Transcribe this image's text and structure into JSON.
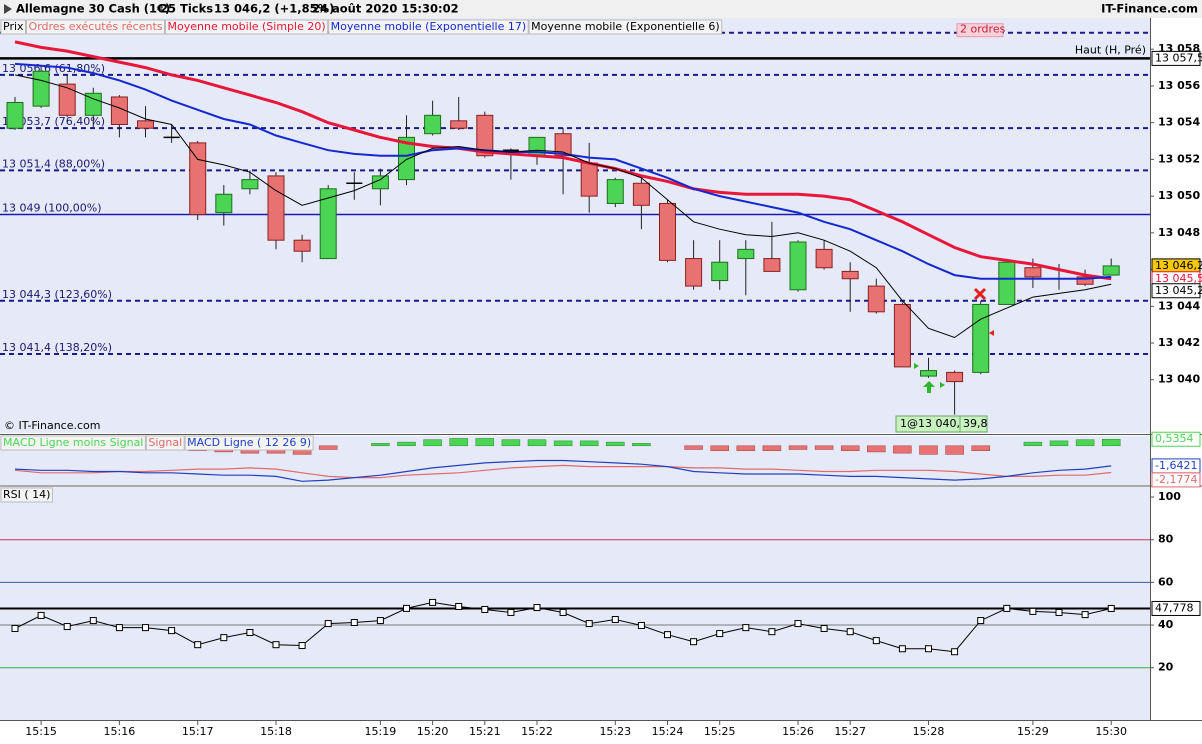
{
  "header": {
    "title": "Allemagne 30 Cash (1€)",
    "interval": "25 Ticks",
    "price": "13 046,2 (+1,85%)",
    "datetime": "24 août 2020 15:30:02",
    "brand": "IT-Finance.com",
    "watermark": "© IT-Finance.com"
  },
  "chart_data": [
    {
      "type": "candlestick",
      "ylim": [
        13037.1,
        13059.7
      ],
      "yticks": [
        {
          "value": 13040,
          "label": "13 040"
        },
        {
          "value": 13042,
          "label": "13 042"
        },
        {
          "value": 13044,
          "label": "13 044"
        },
        {
          "value": 13046,
          "label": "13 046"
        },
        {
          "value": 13048,
          "label": "13 048"
        },
        {
          "value": 13050,
          "label": "13 050"
        },
        {
          "value": 13052,
          "label": "13 052"
        },
        {
          "value": 13054,
          "label": "13 054"
        },
        {
          "value": 13056,
          "label": "13 056"
        },
        {
          "value": 13058,
          "label": "13 058"
        }
      ],
      "series": [
        {
          "name": "Prix",
          "color": "#000000",
          "up_color": "#4cd454",
          "down_color": "#e87272",
          "open": [
            13053.7,
            13054.9,
            13056.1,
            13054.4,
            13055.4,
            13054.1,
            13053.2,
            13052.9,
            13049.1,
            13050.4,
            13051.1,
            13047.6,
            13046.6,
            13050.7,
            13050.4,
            13050.9,
            13053.4,
            13054.1,
            13054.4,
            13052.5,
            13052.2,
            13053.4,
            13051.8,
            13049.6,
            13050.7,
            13049.6,
            13046.6,
            13045.4,
            13046.6,
            13046.6,
            13044.9,
            13047.1,
            13045.9,
            13045.1,
            13044.1,
            13040.2,
            13040.4,
            13040.4,
            13044.1,
            13046.1,
            13045.5,
            13045.6,
            13045.7
          ],
          "high": [
            13055.4,
            13057.1,
            13056.6,
            13055.9,
            13055.5,
            13054.9,
            13053.9,
            13053.0,
            13050.6,
            13051.4,
            13051.3,
            13047.9,
            13050.6,
            13051.3,
            13051.5,
            13054.4,
            13055.2,
            13055.4,
            13054.6,
            13052.6,
            13053.2,
            13053.7,
            13052.9,
            13051.0,
            13051.1,
            13049.8,
            13047.6,
            13047.6,
            13047.6,
            13048.6,
            13047.6,
            13047.6,
            13046.4,
            13045.5,
            13044.2,
            13041.2,
            13040.5,
            13044.3,
            13046.5,
            13046.6,
            13046.3,
            13046.0,
            13046.6
          ],
          "low": [
            13053.6,
            13054.8,
            13054.3,
            13053.7,
            13053.2,
            13053.2,
            13052.9,
            13048.7,
            13048.4,
            13050.1,
            13047.1,
            13046.4,
            13046.6,
            13049.8,
            13049.5,
            13050.6,
            13053.3,
            13053.6,
            13052.1,
            13050.9,
            13051.7,
            13050.1,
            13049.1,
            13049.4,
            13048.2,
            13046.4,
            13044.9,
            13044.9,
            13044.6,
            13045.9,
            13044.8,
            13046.0,
            13043.7,
            13043.6,
            13040.7,
            13040.1,
            13038.1,
            13040.3,
            13044.1,
            13045.0,
            13044.9,
            13045.1,
            13045.7
          ],
          "close": [
            13055.1,
            13056.8,
            13054.4,
            13055.6,
            13053.9,
            13053.7,
            13053.2,
            13049.0,
            13050.1,
            13050.9,
            13047.6,
            13047.0,
            13050.4,
            13050.7,
            13051.1,
            13053.2,
            13054.4,
            13053.7,
            13052.2,
            13052.5,
            13053.2,
            13052.2,
            13050.0,
            13050.9,
            13049.5,
            13046.5,
            13045.1,
            13046.4,
            13047.1,
            13045.9,
            13047.5,
            13046.1,
            13045.5,
            13043.7,
            13040.7,
            13040.5,
            13039.9,
            13044.1,
            13046.4,
            13045.6,
            13045.5,
            13045.2,
            13046.2
          ]
        },
        {
          "name": "Ordres exécutés récents",
          "color": "#e06a6a"
        },
        {
          "name": "Moyenne mobile (Simple 20)",
          "color": "#e8173a",
          "width": 3,
          "values": [
            13058.4,
            13058.1,
            13057.9,
            13057.6,
            13057.3,
            13057.0,
            13056.6,
            13056.3,
            13055.9,
            13055.5,
            13055.1,
            13054.6,
            13054.0,
            13053.6,
            13053.2,
            13052.9,
            13052.7,
            13052.6,
            13052.4,
            13052.3,
            13052.2,
            13052.1,
            13051.8,
            13051.5,
            13051.1,
            13050.8,
            13050.4,
            13050.2,
            13050.1,
            13050.1,
            13050.1,
            13050.0,
            13049.8,
            13049.2,
            13048.6,
            13047.9,
            13047.2,
            13046.7,
            13046.5,
            13046.3,
            13046.0,
            13045.7,
            13045.5
          ]
        },
        {
          "name": "Moyenne mobile (Exponentielle 17)",
          "color": "#1428d0",
          "width": 2,
          "values": [
            13057.2,
            13057.1,
            13057.0,
            13056.7,
            13056.3,
            13055.8,
            13055.2,
            13054.7,
            13054.2,
            13053.9,
            13053.3,
            13052.9,
            13052.5,
            13052.3,
            13052.2,
            13052.2,
            13052.5,
            13052.6,
            13052.5,
            13052.4,
            13052.4,
            13052.3,
            13052.1,
            13052.0,
            13051.5,
            13051.0,
            13050.4,
            13050.0,
            13049.7,
            13049.4,
            13049.1,
            13048.6,
            13048.2,
            13047.6,
            13047.0,
            13046.3,
            13045.7,
            13045.5,
            13045.5,
            13045.5,
            13045.5,
            13045.5,
            13045.6
          ]
        },
        {
          "name": "Moyenne mobile (Exponentielle 6)",
          "color": "#000000",
          "width": 1,
          "values": [
            13056.6,
            13056.3,
            13055.9,
            13055.3,
            13054.8,
            13054.2,
            13053.9,
            13052.0,
            13051.7,
            13051.3,
            13050.3,
            13049.5,
            13049.9,
            13050.3,
            13050.9,
            13052.0,
            13052.6,
            13052.7,
            13052.5,
            13052.4,
            13052.5,
            13052.4,
            13051.8,
            13051.5,
            13051.0,
            13049.8,
            13048.6,
            13048.2,
            13047.9,
            13047.8,
            13048.0,
            13047.6,
            13047.0,
            13046.1,
            13044.3,
            13042.8,
            13042.3,
            13043.3,
            13043.9,
            13044.5,
            13044.7,
            13044.9,
            13045.2
          ]
        }
      ],
      "levels": [
        {
          "value": 13056.6,
          "label": "13 056,6 (61,80%)",
          "style": "dashed",
          "color": "#1a1a8c"
        },
        {
          "value": 13053.7,
          "label": "13 053,7 (76,40%)",
          "style": "dashed",
          "color": "#1a1a8c"
        },
        {
          "value": 13051.4,
          "label": "13 051,4 (88,00%)",
          "style": "dashed",
          "color": "#1a1a8c"
        },
        {
          "value": 13049,
          "label": "13 049 (100,00%)",
          "style": "solid",
          "color": "#1a1ab0"
        },
        {
          "value": 13044.3,
          "label": "13 044,3 (123,60%)",
          "style": "dashed",
          "color": "#1a1a8c"
        },
        {
          "value": 13041.4,
          "label": "13 041,4 (138,20%)",
          "style": "dashed",
          "color": "#1a1a8c"
        }
      ],
      "high": {
        "value": 13057.5,
        "label": "Haut (H, Pré)",
        "value_label": "13 057,5"
      },
      "orders": {
        "value": 13058.9,
        "label": "2 ordres"
      },
      "price_tags": [
        {
          "value": 13046.2,
          "label": "13 046,2",
          "color": "#000000",
          "fill": "#f8c800"
        },
        {
          "value": 13045.5,
          "label": "13 045,5",
          "color": "#e8173a",
          "fill": "#ffffff"
        },
        {
          "value": 13045.2,
          "label": "13 045,2",
          "color": "#000000",
          "fill": "#ffffff"
        }
      ],
      "annotations": [
        "1@13 040,8",
        "39,8"
      ]
    },
    {
      "type": "macd",
      "ylim": [
        -3.2,
        0.8
      ],
      "series": [
        {
          "name": "MACD Ligne moins Signal",
          "type": "bar",
          "color": "#4cd454",
          "down_color": "#e87272",
          "values": [
            0.1,
            0.2,
            0.2,
            0.1,
            0,
            -0.1,
            -0.2,
            -0.4,
            -0.5,
            -0.6,
            -0.6,
            -0.7,
            -0.3,
            0,
            0.2,
            0.3,
            0.5,
            0.6,
            0.6,
            0.5,
            0.5,
            0.4,
            0.4,
            0.3,
            0.2,
            0,
            -0.3,
            -0.4,
            -0.4,
            -0.4,
            -0.3,
            -0.3,
            -0.4,
            -0.5,
            -0.6,
            -0.7,
            -0.7,
            -0.4,
            0,
            0.3,
            0.4,
            0.5,
            0.5354
          ],
          "value_labels": [
            null,
            null,
            null,
            null,
            null,
            null,
            null,
            null,
            null,
            null,
            null,
            null,
            null,
            null,
            null,
            null,
            null,
            null,
            null,
            null,
            null,
            null,
            null,
            null,
            null,
            null,
            null,
            null,
            null,
            null,
            null,
            null,
            null,
            null,
            null,
            null,
            null,
            null,
            null,
            null,
            null,
            null,
            "0,5354"
          ]
        },
        {
          "name": "Signal",
          "type": "line",
          "color": "#e06a6a",
          "values": [
            -2.0,
            -2.2,
            -2.2,
            -2.2,
            -2.1,
            -2.1,
            -2.0,
            -1.9,
            -1.9,
            -1.8,
            -1.9,
            -2.2,
            -2.5,
            -2.6,
            -2.6,
            -2.4,
            -2.3,
            -2.2,
            -2.0,
            -1.8,
            -1.7,
            -1.6,
            -1.7,
            -1.7,
            -1.7,
            -1.7,
            -1.8,
            -1.8,
            -1.9,
            -1.9,
            -2.0,
            -2.1,
            -2.1,
            -2.0,
            -2.0,
            -2.0,
            -2.1,
            -2.3,
            -2.5,
            -2.5,
            -2.4,
            -2.4,
            -2.1774
          ],
          "value_labels": [
            null,
            null,
            null,
            null,
            null,
            null,
            null,
            null,
            null,
            null,
            null,
            null,
            null,
            null,
            null,
            null,
            null,
            null,
            null,
            null,
            null,
            null,
            null,
            null,
            null,
            null,
            null,
            null,
            null,
            null,
            null,
            null,
            null,
            null,
            null,
            null,
            null,
            null,
            null,
            null,
            null,
            null,
            "-2,1774"
          ]
        },
        {
          "name": "MACD Ligne ( 12 26 9)",
          "type": "line",
          "color": "#2040c0",
          "values": [
            -1.9,
            -2.0,
            -2.0,
            -2.1,
            -2.1,
            -2.2,
            -2.2,
            -2.3,
            -2.4,
            -2.4,
            -2.5,
            -2.9,
            -2.8,
            -2.6,
            -2.4,
            -2.1,
            -1.8,
            -1.6,
            -1.4,
            -1.3,
            -1.2,
            -1.2,
            -1.3,
            -1.4,
            -1.5,
            -1.7,
            -2.1,
            -2.2,
            -2.3,
            -2.3,
            -2.3,
            -2.4,
            -2.5,
            -2.5,
            -2.6,
            -2.7,
            -2.8,
            -2.7,
            -2.5,
            -2.2,
            -2.0,
            -1.9,
            -1.6421
          ],
          "value_labels": [
            null,
            null,
            null,
            null,
            null,
            null,
            null,
            null,
            null,
            null,
            null,
            null,
            null,
            null,
            null,
            null,
            null,
            null,
            null,
            null,
            null,
            null,
            null,
            null,
            null,
            null,
            null,
            null,
            null,
            null,
            null,
            null,
            null,
            null,
            null,
            null,
            null,
            null,
            null,
            null,
            null,
            null,
            "-1,6421"
          ]
        }
      ]
    },
    {
      "type": "line",
      "ylim": [
        -4.5,
        104.7
      ],
      "yticks": [
        100,
        80,
        60,
        40,
        20
      ],
      "categories": [
        null,
        "15:15",
        null,
        null,
        "15:16",
        null,
        null,
        "15:17",
        null,
        null,
        "15:18",
        null,
        null,
        null,
        "15:19",
        null,
        "15:20",
        null,
        "15:21",
        null,
        "15:22",
        null,
        null,
        "15:23",
        null,
        "15:24",
        null,
        "15:25",
        null,
        null,
        "15:26",
        null,
        "15:27",
        null,
        null,
        "15:28",
        null,
        null,
        null,
        "15:29",
        null,
        null,
        "15:30"
      ],
      "levels": [
        {
          "value": 80,
          "color": "#d0305a"
        },
        {
          "value": 60,
          "color": "#3a5a9a"
        },
        {
          "value": 40,
          "color": "#7a7a7a"
        },
        {
          "value": 20,
          "color": "#2fb040"
        }
      ],
      "series": [
        {
          "name": "RSI ( 14)",
          "color": "#000000",
          "values": [
            38.4,
            44.5,
            39.3,
            42.1,
            38.8,
            38.8,
            37.4,
            30.8,
            34.1,
            36.5,
            30.8,
            30.4,
            40.7,
            41.2,
            42.1,
            47.8,
            50.6,
            48.7,
            47.3,
            45.9,
            48.2,
            45.9,
            40.7,
            42.6,
            39.8,
            35.5,
            32.2,
            36.0,
            38.8,
            36.9,
            40.7,
            38.4,
            36.9,
            32.7,
            28.9,
            28.9,
            27.5,
            42.1,
            47.8,
            46.4,
            45.9,
            44.9,
            47.778
          ],
          "value_labels": [
            null,
            null,
            null,
            null,
            null,
            null,
            null,
            null,
            null,
            null,
            null,
            null,
            null,
            null,
            null,
            null,
            null,
            null,
            null,
            null,
            null,
            null,
            null,
            null,
            null,
            null,
            null,
            null,
            null,
            null,
            null,
            null,
            null,
            null,
            null,
            null,
            null,
            null,
            null,
            null,
            null,
            null,
            "47,778"
          ]
        }
      ]
    }
  ]
}
